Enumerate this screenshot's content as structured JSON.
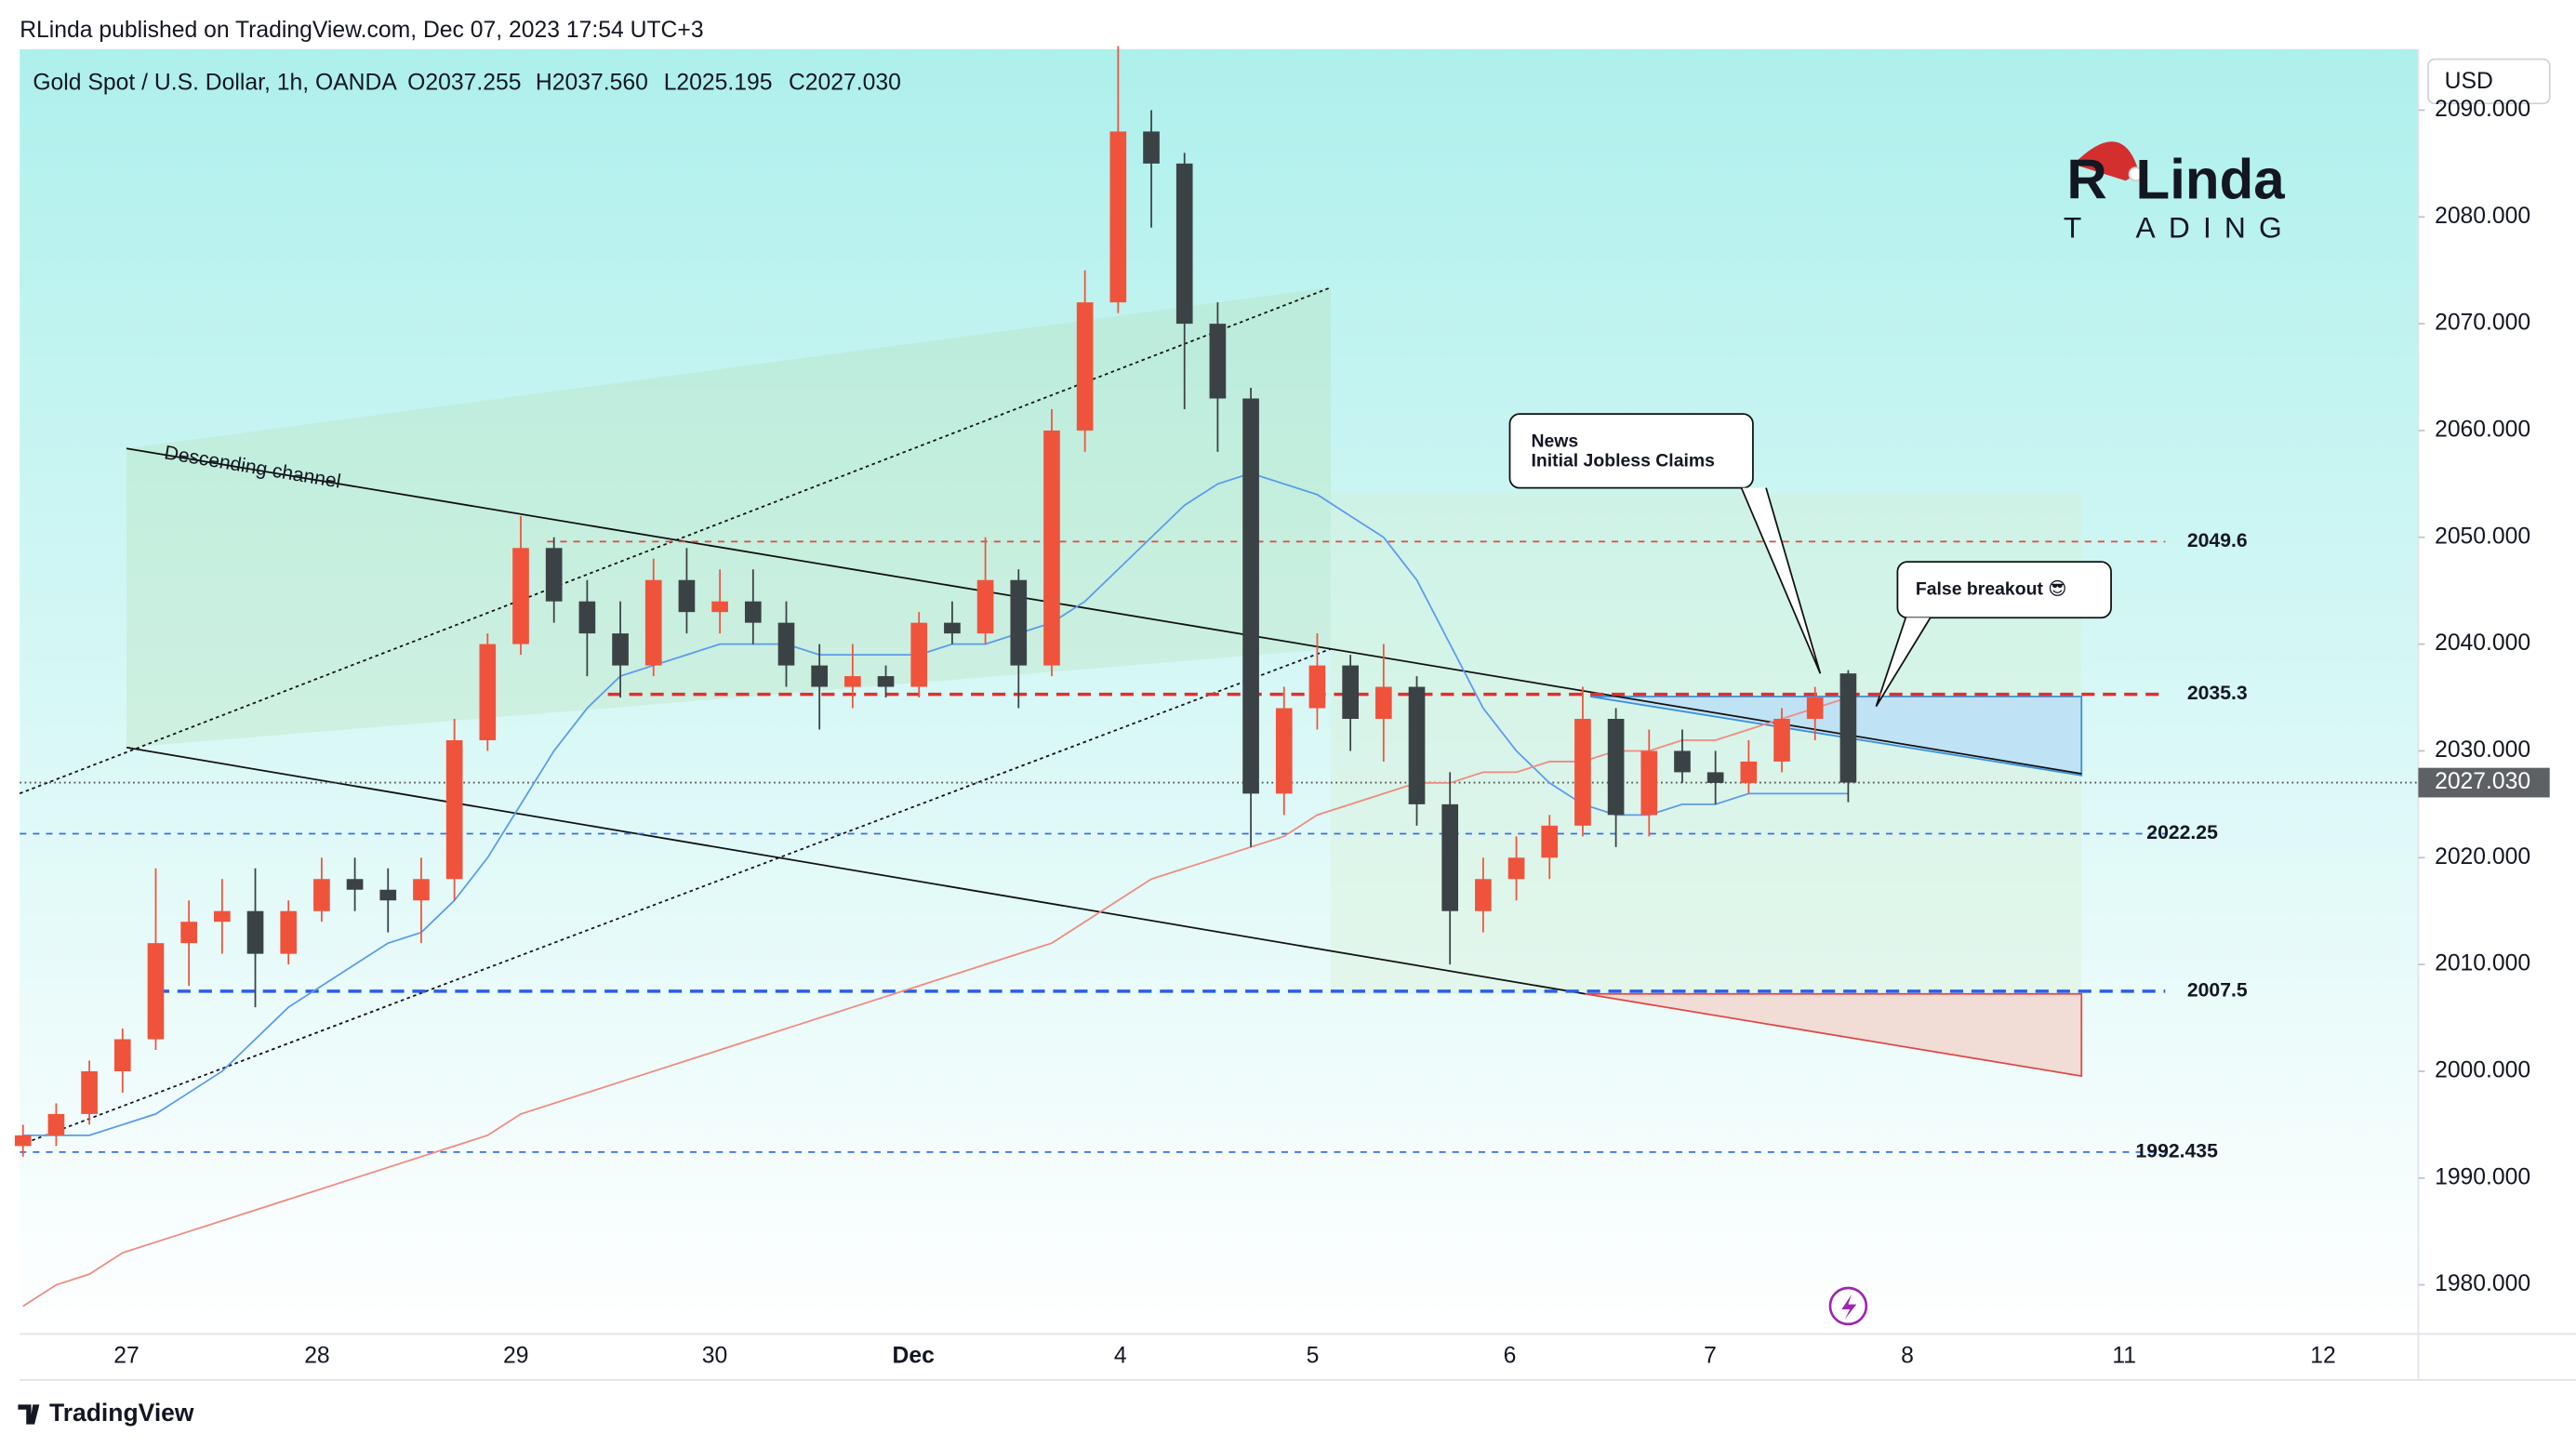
{
  "header": "RLinda published on TradingView.com, Dec 07, 2023 17:54 UTC+3",
  "chart_data": {
    "type": "candlestick",
    "title": "Gold Spot / U.S. Dollar, 1h, OANDA",
    "ohlc_labels": [
      "O2037.255",
      "H2037.560",
      "L2025.195",
      "C2027.030"
    ],
    "currency": "USD",
    "x_categories": [
      "27",
      "28",
      "29",
      "30",
      "Dec",
      "4",
      "5",
      "6",
      "7",
      "8",
      "11",
      "12"
    ],
    "ylim": [
      1975.4,
      2095.7
    ],
    "yticks": [
      {
        "value": 1980,
        "label": "1980.000"
      },
      {
        "value": 1990,
        "label": "1990.000"
      },
      {
        "value": 2000,
        "label": "2000.000"
      },
      {
        "value": 2010,
        "label": "2010.000"
      },
      {
        "value": 2020,
        "label": "2020.000"
      },
      {
        "value": 2030,
        "label": "2030.000"
      },
      {
        "value": 2040,
        "label": "2040.000"
      },
      {
        "value": 2050,
        "label": "2050.000"
      },
      {
        "value": 2060,
        "label": "2060.000"
      },
      {
        "value": 2070,
        "label": "2070.000"
      },
      {
        "value": 2080,
        "label": "2080.000"
      },
      {
        "value": 2090,
        "label": "2090.000"
      }
    ],
    "up_color": "#f0533c",
    "down_color": "#3b4245",
    "ohlc": [
      [
        1993,
        1995,
        1992,
        1994
      ],
      [
        1994,
        1997,
        1993,
        1996
      ],
      [
        1996,
        2001,
        1995,
        2000
      ],
      [
        2000,
        2004,
        1998,
        2003
      ],
      [
        2003,
        2019,
        2002,
        2012
      ],
      [
        2012,
        2016,
        2008,
        2014
      ],
      [
        2014,
        2018,
        2011,
        2015
      ],
      [
        2015,
        2019,
        2006,
        2011
      ],
      [
        2011,
        2016,
        2010,
        2015
      ],
      [
        2015,
        2020,
        2014,
        2018
      ],
      [
        2018,
        2020,
        2015,
        2017
      ],
      [
        2017,
        2019,
        2013,
        2016
      ],
      [
        2016,
        2020,
        2012,
        2018
      ],
      [
        2018,
        2033,
        2016,
        2031
      ],
      [
        2031,
        2041,
        2030,
        2040
      ],
      [
        2040,
        2052,
        2039,
        2049
      ],
      [
        2049,
        2050,
        2042,
        2044
      ],
      [
        2044,
        2046,
        2037,
        2041
      ],
      [
        2041,
        2044,
        2035,
        2038
      ],
      [
        2038,
        2048,
        2037,
        2046
      ],
      [
        2046,
        2049,
        2041,
        2043
      ],
      [
        2043,
        2047,
        2041,
        2044
      ],
      [
        2044,
        2047,
        2040,
        2042
      ],
      [
        2042,
        2044,
        2036,
        2038
      ],
      [
        2038,
        2040,
        2032,
        2036
      ],
      [
        2036,
        2040,
        2034,
        2037
      ],
      [
        2037,
        2038,
        2035,
        2036
      ],
      [
        2036,
        2043,
        2035,
        2042
      ],
      [
        2042,
        2044,
        2040,
        2041
      ],
      [
        2041,
        2050,
        2040,
        2046
      ],
      [
        2046,
        2047,
        2034,
        2038
      ],
      [
        2038,
        2062,
        2037,
        2060
      ],
      [
        2060,
        2075,
        2058,
        2072
      ],
      [
        2072,
        2096,
        2071,
        2088
      ],
      [
        2088,
        2090,
        2079,
        2085
      ],
      [
        2085,
        2086,
        2062,
        2070
      ],
      [
        2070,
        2072,
        2058,
        2063
      ],
      [
        2063,
        2064,
        2021,
        2026
      ],
      [
        2026,
        2036,
        2024,
        2034
      ],
      [
        2034,
        2041,
        2032,
        2038
      ],
      [
        2038,
        2039,
        2030,
        2033
      ],
      [
        2033,
        2040,
        2029,
        2036
      ],
      [
        2036,
        2037,
        2023,
        2025
      ],
      [
        2025,
        2028,
        2010,
        2015
      ],
      [
        2015,
        2020,
        2013,
        2018
      ],
      [
        2018,
        2022,
        2016,
        2020
      ],
      [
        2020,
        2024,
        2018,
        2023
      ],
      [
        2023,
        2036,
        2022,
        2033
      ],
      [
        2033,
        2034,
        2021,
        2024
      ],
      [
        2024,
        2032,
        2022,
        2030
      ],
      [
        2030,
        2032,
        2027,
        2028
      ],
      [
        2028,
        2030,
        2025,
        2027
      ],
      [
        2027,
        2031,
        2026,
        2029
      ],
      [
        2029,
        2034,
        2028,
        2033
      ],
      [
        2033,
        2036,
        2031,
        2035
      ],
      [
        2037.255,
        2037.56,
        2025.195,
        2027.03
      ]
    ],
    "moving_averages": [
      {
        "color": "#5b9bea",
        "values": [
          1994,
          1994,
          1994,
          1995,
          1996,
          1998,
          2000,
          2003,
          2006,
          2008,
          2010,
          2012,
          2013,
          2016,
          2020,
          2025,
          2030,
          2034,
          2037,
          2038,
          2039,
          2040,
          2040,
          2040,
          2039,
          2039,
          2039,
          2039,
          2040,
          2040,
          2041,
          2042,
          2044,
          2047,
          2050,
          2053,
          2055,
          2056,
          2055,
          2054,
          2052,
          2050,
          2046,
          2040,
          2034,
          2030,
          2027,
          2025,
          2024,
          2024,
          2025,
          2025,
          2026,
          2026,
          2026,
          2026
        ]
      },
      {
        "color": "#ef8a80",
        "values": [
          1978,
          1980,
          1981,
          1983,
          1984,
          1985,
          1986,
          1987,
          1988,
          1989,
          1990,
          1991,
          1992,
          1993,
          1994,
          1996,
          1997,
          1998,
          1999,
          2000,
          2001,
          2002,
          2003,
          2004,
          2005,
          2006,
          2007,
          2008,
          2009,
          2010,
          2011,
          2012,
          2014,
          2016,
          2018,
          2019,
          2020,
          2021,
          2022,
          2024,
          2025,
          2026,
          2027,
          2027,
          2028,
          2028,
          2029,
          2029,
          2030,
          2030,
          2031,
          2031,
          2032,
          2033,
          2034,
          2035
        ]
      }
    ],
    "levels": [
      {
        "value": 2049.6,
        "color": "#e04848",
        "line_width": 1
      },
      {
        "value": 2035.3,
        "color": "#e03030",
        "line_width": 2
      },
      {
        "value": 2022.25,
        "color": "#3a6fe0",
        "line_width": 1
      },
      {
        "value": 2007.5,
        "color": "#2c5ee8",
        "line_width": 2
      },
      {
        "value": 1992.435,
        "color": "#3a6fe0",
        "line_width": 1
      }
    ],
    "last_price": {
      "value": 2027.03,
      "label": "2027.030"
    },
    "annotations": {
      "channel": "Descending channel",
      "news_title": "News",
      "news_text": "Initial Jobless Claims",
      "false_breakout": "False breakout 😎"
    },
    "logo": {
      "main": "Linda",
      "sub": "ADING"
    }
  },
  "footer": "TradingView"
}
